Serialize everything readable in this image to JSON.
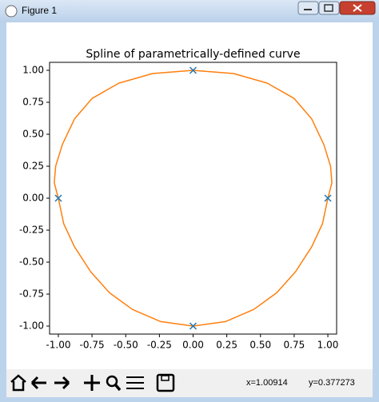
{
  "window": {
    "title": "Figure 1",
    "status_x": "x=1.00914",
    "status_y": "y=0.377273"
  },
  "chart_data": {
    "type": "line",
    "title": "Spline of parametrically-defined curve",
    "xlim": [
      -1.065,
      1.065
    ],
    "ylim": [
      -1.0625,
      1.0625
    ],
    "xticks": [
      {
        "value": -1,
        "label": "-1.00"
      },
      {
        "value": -0.75,
        "label": "-0.75"
      },
      {
        "value": -0.5,
        "label": "-0.50"
      },
      {
        "value": -0.25,
        "label": "-0.25"
      },
      {
        "value": 0,
        "label": "0.00"
      },
      {
        "value": 0.25,
        "label": "0.25"
      },
      {
        "value": 0.5,
        "label": "0.50"
      },
      {
        "value": 0.75,
        "label": "0.75"
      },
      {
        "value": 1,
        "label": "1.00"
      }
    ],
    "yticks": [
      {
        "value": -1,
        "label": "-1.00"
      },
      {
        "value": -0.75,
        "label": "-0.75"
      },
      {
        "value": -0.5,
        "label": "-0.50"
      },
      {
        "value": -0.25,
        "label": "-0.25"
      },
      {
        "value": 0,
        "label": "0.00"
      },
      {
        "value": 0.25,
        "label": "0.25"
      },
      {
        "value": 0.5,
        "label": "0.50"
      },
      {
        "value": 0.75,
        "label": "0.75"
      },
      {
        "value": 1,
        "label": "1.00"
      }
    ],
    "grid": false,
    "series": [
      {
        "style": "markers",
        "color": "#1f77b4",
        "x": [
          1,
          0,
          -1,
          0
        ],
        "values": [
          0,
          1,
          0,
          -1
        ]
      },
      {
        "style": "line",
        "color": "#ff7f0e",
        "x": [
          0,
          0.3,
          0.55,
          0.75,
          0.88,
          0.97,
          1.02,
          1.03,
          1.0,
          0.96,
          0.88,
          0.76,
          0.62,
          0.45,
          0.24,
          0,
          -0.24,
          -0.45,
          -0.62,
          -0.76,
          -0.88,
          -0.96,
          -1.0,
          -1.03,
          -1.02,
          -0.97,
          -0.88,
          -0.75,
          -0.55,
          -0.3,
          0
        ],
        "values": [
          1,
          0.975,
          0.9,
          0.78,
          0.62,
          0.42,
          0.25,
          0.12,
          0,
          -0.2,
          -0.38,
          -0.575,
          -0.74,
          -0.87,
          -0.965,
          -1,
          -0.965,
          -0.87,
          -0.74,
          -0.575,
          -0.38,
          -0.2,
          0,
          0.12,
          0.25,
          0.42,
          0.62,
          0.78,
          0.9,
          0.975,
          1
        ]
      }
    ]
  }
}
